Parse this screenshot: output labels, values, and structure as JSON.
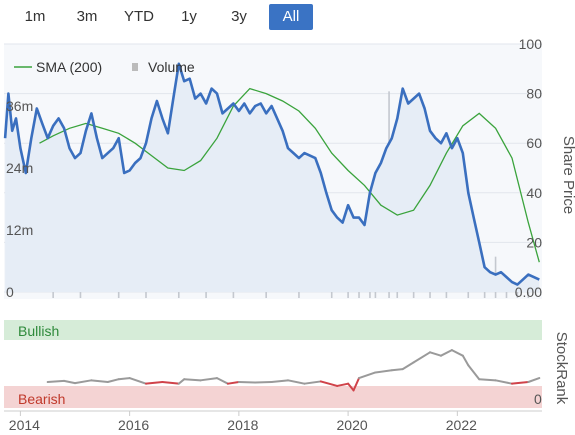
{
  "range_selector": {
    "buttons": [
      "1m",
      "3m",
      "YTD",
      "1y",
      "3y",
      "All"
    ],
    "selected": "All",
    "active_color": "#3a73c4"
  },
  "chart_data": [
    {
      "type": "line",
      "title": "",
      "ylabel": "Share Price",
      "ylim": [
        0,
        100
      ],
      "yticks": [
        "0.00",
        "20",
        "40",
        "60",
        "80",
        "100"
      ],
      "volume_ticks": [
        "0",
        "12m",
        "24m",
        "36m"
      ],
      "volume_ylim_m": [
        0,
        48
      ],
      "xlim": [
        2013.7,
        2023.55
      ],
      "xticks": [
        "2014",
        "2016",
        "2018",
        "2020",
        "2022"
      ],
      "legend": {
        "position": "top-left",
        "entries": [
          "SMA (200)",
          "Volume"
        ]
      },
      "grid": true,
      "series": [
        {
          "name": "Share Price",
          "color": "#3a6fbf",
          "x": [
            2013.72,
            2013.78,
            2013.85,
            2013.92,
            2014.0,
            2014.1,
            2014.2,
            2014.3,
            2014.4,
            2014.5,
            2014.6,
            2014.7,
            2014.8,
            2014.9,
            2015.0,
            2015.1,
            2015.2,
            2015.3,
            2015.4,
            2015.5,
            2015.6,
            2015.7,
            2015.8,
            2015.9,
            2016.0,
            2016.1,
            2016.2,
            2016.3,
            2016.4,
            2016.5,
            2016.6,
            2016.7,
            2016.8,
            2016.9,
            2017.0,
            2017.1,
            2017.2,
            2017.3,
            2017.4,
            2017.5,
            2017.6,
            2017.7,
            2017.8,
            2017.9,
            2018.0,
            2018.1,
            2018.2,
            2018.3,
            2018.4,
            2018.5,
            2018.6,
            2018.7,
            2018.8,
            2018.9,
            2019.0,
            2019.1,
            2019.2,
            2019.3,
            2019.4,
            2019.5,
            2019.6,
            2019.7,
            2019.8,
            2019.9,
            2020.0,
            2020.1,
            2020.2,
            2020.3,
            2020.4,
            2020.5,
            2020.6,
            2020.7,
            2020.8,
            2020.9,
            2021.0,
            2021.1,
            2021.2,
            2021.3,
            2021.4,
            2021.5,
            2021.6,
            2021.7,
            2021.8,
            2021.9,
            2022.0,
            2022.1,
            2022.2,
            2022.3,
            2022.4,
            2022.5,
            2022.6,
            2022.7,
            2022.8,
            2022.9,
            2023.0,
            2023.1,
            2023.2,
            2023.3,
            2023.4,
            2023.5
          ],
          "y": [
            62,
            80,
            65,
            70,
            58,
            48,
            62,
            74,
            68,
            62,
            67,
            70,
            66,
            58,
            54,
            56,
            65,
            72,
            62,
            54,
            56,
            58,
            62,
            48,
            49,
            52,
            54,
            60,
            70,
            77,
            70,
            64,
            78,
            92,
            85,
            86,
            78,
            80,
            76,
            82,
            80,
            72,
            74,
            76,
            73,
            76,
            72,
            75,
            76,
            72,
            75,
            70,
            65,
            58,
            56,
            54,
            56,
            55,
            54,
            48,
            40,
            33,
            30,
            28,
            35,
            30,
            30,
            27,
            40,
            48,
            52,
            58,
            62,
            70,
            82,
            76,
            78,
            80,
            74,
            65,
            62,
            60,
            64,
            58,
            62,
            56,
            40,
            30,
            20,
            10,
            8,
            7,
            8,
            6,
            4,
            3,
            5,
            7,
            6,
            5
          ]
        },
        {
          "name": "SMA (200)",
          "color": "#3aa33c",
          "x": [
            2014.35,
            2014.6,
            2014.9,
            2015.2,
            2015.5,
            2015.8,
            2016.1,
            2016.4,
            2016.7,
            2017.0,
            2017.3,
            2017.6,
            2017.9,
            2018.2,
            2018.5,
            2018.8,
            2019.1,
            2019.4,
            2019.7,
            2020.0,
            2020.3,
            2020.6,
            2020.9,
            2021.2,
            2021.5,
            2021.8,
            2022.1,
            2022.4,
            2022.7,
            2023.0,
            2023.3,
            2023.5
          ],
          "y": [
            60,
            63,
            66,
            68,
            66,
            64,
            60,
            55,
            50,
            49,
            53,
            62,
            75,
            82,
            80,
            77,
            73,
            66,
            56,
            49,
            43,
            35,
            31,
            33,
            43,
            56,
            67,
            72,
            66,
            54,
            28,
            12
          ]
        }
      ]
    },
    {
      "type": "line",
      "title": "",
      "ylabel": "StockRank",
      "ylim": [
        0,
        100
      ],
      "yticks": [
        "0"
      ],
      "bands": [
        "Bullish",
        "Bearish"
      ],
      "band_colors": {
        "bullish": "#d6ecd8",
        "bearish": "#f4d3d3"
      },
      "series": [
        {
          "name": "StockRank",
          "x": [
            2014.5,
            2014.8,
            2015.0,
            2015.3,
            2015.6,
            2015.8,
            2016.0,
            2016.3,
            2016.6,
            2016.9,
            2017.0,
            2017.3,
            2017.6,
            2017.8,
            2018.0,
            2018.3,
            2018.6,
            2018.9,
            2019.2,
            2019.5,
            2019.8,
            2020.0,
            2020.1,
            2020.2,
            2020.5,
            2020.8,
            2021.0,
            2021.2,
            2021.5,
            2021.7,
            2021.9,
            2022.1,
            2022.2,
            2022.4,
            2022.7,
            2023.0,
            2023.3,
            2023.5
          ],
          "y": [
            25,
            27,
            23,
            28,
            25,
            30,
            32,
            22,
            25,
            22,
            30,
            28,
            32,
            22,
            25,
            24,
            25,
            28,
            22,
            26,
            18,
            22,
            10,
            32,
            42,
            46,
            48,
            60,
            78,
            72,
            82,
            72,
            55,
            30,
            28,
            22,
            25,
            32
          ]
        }
      ]
    }
  ]
}
